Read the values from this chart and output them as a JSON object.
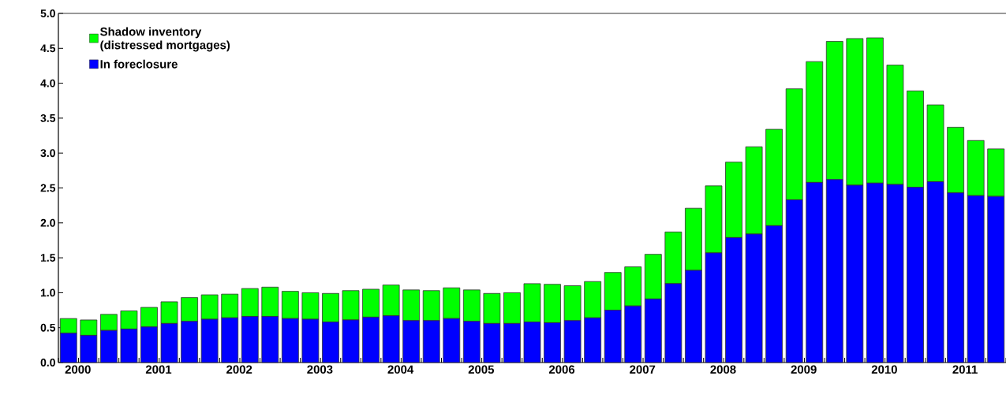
{
  "chart_data": {
    "type": "bar",
    "stacked": true,
    "categories": [
      "2000",
      null,
      null,
      null,
      "2001",
      null,
      null,
      null,
      "2002",
      null,
      null,
      null,
      "2003",
      null,
      null,
      null,
      "2004",
      null,
      null,
      null,
      "2005",
      null,
      null,
      null,
      "2006",
      null,
      null,
      null,
      "2007",
      null,
      null,
      null,
      "2008",
      null,
      null,
      null,
      "2009",
      null,
      null,
      null,
      "2010",
      null,
      null,
      null,
      "2011",
      null,
      null
    ],
    "series": [
      {
        "name": "In foreclosure",
        "color": "#0000ff",
        "values": [
          0.42,
          0.39,
          0.46,
          0.48,
          0.51,
          0.56,
          0.59,
          0.62,
          0.64,
          0.66,
          0.66,
          0.63,
          0.62,
          0.58,
          0.61,
          0.65,
          0.67,
          0.6,
          0.6,
          0.63,
          0.59,
          0.56,
          0.56,
          0.58,
          0.57,
          0.6,
          0.64,
          0.75,
          0.81,
          0.91,
          1.13,
          1.32,
          1.57,
          1.79,
          1.84,
          1.96,
          2.33,
          2.58,
          2.62,
          2.54,
          2.57,
          2.55,
          2.51,
          2.59,
          2.43,
          2.39,
          2.38
        ]
      },
      {
        "name": "Shadow inventory\n(distressed mortgages)",
        "color": "#00ff00",
        "values": [
          0.21,
          0.22,
          0.23,
          0.26,
          0.28,
          0.31,
          0.34,
          0.35,
          0.34,
          0.4,
          0.42,
          0.39,
          0.38,
          0.41,
          0.42,
          0.4,
          0.44,
          0.44,
          0.43,
          0.44,
          0.45,
          0.43,
          0.44,
          0.55,
          0.55,
          0.5,
          0.52,
          0.54,
          0.56,
          0.64,
          0.74,
          0.89,
          0.96,
          1.08,
          1.25,
          1.38,
          1.59,
          1.73,
          1.98,
          2.1,
          2.08,
          1.71,
          1.38,
          1.1,
          0.94,
          0.79,
          0.68
        ]
      }
    ],
    "ylim": [
      0,
      5
    ],
    "yticks": [
      {
        "value": 0,
        "label": "0.0"
      },
      {
        "value": 0.5,
        "label": "0.5"
      },
      {
        "value": 1,
        "label": "1.0"
      },
      {
        "value": 1.5,
        "label": "1.5"
      },
      {
        "value": 2,
        "label": "2.0"
      },
      {
        "value": 2.5,
        "label": "2.5"
      },
      {
        "value": 3,
        "label": "3.0"
      },
      {
        "value": 3.5,
        "label": "3.5"
      },
      {
        "value": 4,
        "label": "4.0"
      },
      {
        "value": 4.5,
        "label": "4.5"
      },
      {
        "value": 5,
        "label": "5.0"
      }
    ],
    "legend": "top left"
  }
}
